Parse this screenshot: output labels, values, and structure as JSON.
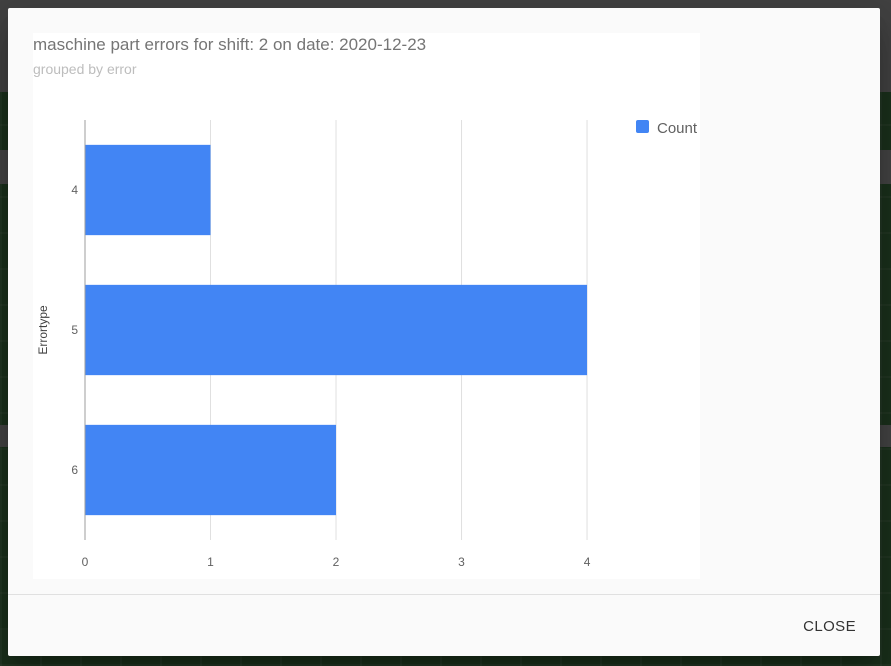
{
  "dialog": {
    "title": "maschine part errors for shift: 2 on date: 2020-12-23",
    "subtitle": "grouped by error",
    "close_label": "CLOSE"
  },
  "colors": {
    "bar": "#4285f4",
    "gridline": "#e0e0e0",
    "axis_text": "#616161"
  },
  "chart_data": {
    "type": "bar",
    "orientation": "horizontal",
    "title": "maschine part errors for shift: 2 on date: 2020-12-23",
    "subtitle": "grouped by error",
    "ylabel": "Errortype",
    "xlabel": "",
    "categories": [
      "4",
      "5",
      "6"
    ],
    "series": [
      {
        "name": "Count",
        "values": [
          1,
          4,
          2
        ]
      }
    ],
    "xlim": [
      0,
      4.9
    ],
    "x_ticks": [
      "0",
      "1",
      "2",
      "3",
      "4"
    ],
    "grid": true,
    "legend": "top-right"
  }
}
